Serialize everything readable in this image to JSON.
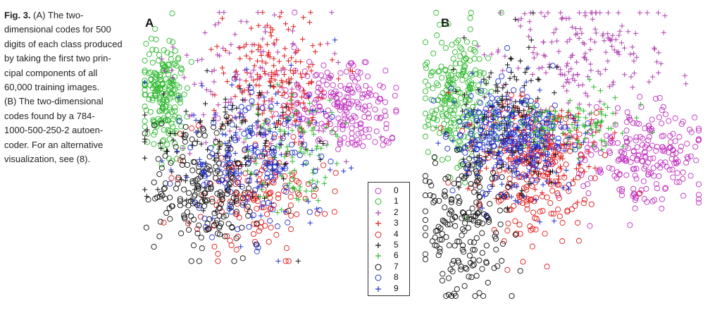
{
  "caption": {
    "fig_label": "Fig. 3.",
    "line1_rest": " (A) The two-",
    "line2": "dimensional codes for 500",
    "line3": "digits of each class produced",
    "line4": "by taking the first two prin-",
    "line5": "cipal components of all",
    "line6": "60,000 training images.",
    "line7": "(B) The two-dimensional",
    "line8": "codes found by a 784-",
    "line9": "1000-500-250-2 autoen-",
    "line10": "coder. For an alternative",
    "line11": "visualization, see (8)."
  },
  "chart_data": [
    {
      "type": "scatter",
      "panel": "A",
      "title": "",
      "xlabel": "",
      "ylabel": "",
      "axes_visible": false,
      "grid": false,
      "legend_position": "shared, between panels bottom",
      "series": [
        {
          "name": "0",
          "marker": "circle",
          "color": "#c030c0",
          "cluster": {
            "cx": 0.78,
            "cy": 0.38,
            "sx": 0.12,
            "sy": 0.1,
            "n": 220
          }
        },
        {
          "name": "1",
          "marker": "circle",
          "color": "#2db82d",
          "cluster": {
            "cx": 0.08,
            "cy": 0.33,
            "sx": 0.04,
            "sy": 0.11,
            "n": 200
          }
        },
        {
          "name": "2",
          "marker": "plus",
          "color": "#b040b0",
          "cluster": {
            "cx": 0.45,
            "cy": 0.3,
            "sx": 0.16,
            "sy": 0.15,
            "n": 140
          }
        },
        {
          "name": "3",
          "marker": "plus",
          "color": "#e01818",
          "cluster": {
            "cx": 0.52,
            "cy": 0.26,
            "sx": 0.1,
            "sy": 0.12,
            "n": 170
          }
        },
        {
          "name": "4",
          "marker": "circle",
          "color": "#e01818",
          "cluster": {
            "cx": 0.44,
            "cy": 0.72,
            "sx": 0.14,
            "sy": 0.12,
            "n": 150
          }
        },
        {
          "name": "5",
          "marker": "plus",
          "color": "#111111",
          "cluster": {
            "cx": 0.36,
            "cy": 0.55,
            "sx": 0.15,
            "sy": 0.14,
            "n": 140
          }
        },
        {
          "name": "6",
          "marker": "plus",
          "color": "#2db82d",
          "cluster": {
            "cx": 0.6,
            "cy": 0.55,
            "sx": 0.12,
            "sy": 0.12,
            "n": 100
          }
        },
        {
          "name": "7",
          "marker": "circle",
          "color": "#111111",
          "cluster": {
            "cx": 0.25,
            "cy": 0.74,
            "sx": 0.1,
            "sy": 0.12,
            "n": 190
          }
        },
        {
          "name": "8",
          "marker": "circle",
          "color": "#2030d0",
          "cluster": {
            "cx": 0.42,
            "cy": 0.6,
            "sx": 0.14,
            "sy": 0.14,
            "n": 120
          }
        },
        {
          "name": "9",
          "marker": "plus",
          "color": "#2030d0",
          "cluster": {
            "cx": 0.44,
            "cy": 0.58,
            "sx": 0.15,
            "sy": 0.16,
            "n": 100
          }
        }
      ]
    },
    {
      "type": "scatter",
      "panel": "B",
      "title": "",
      "xlabel": "",
      "ylabel": "",
      "axes_visible": false,
      "grid": false,
      "legend_position": "shared, between panels bottom",
      "series": [
        {
          "name": "0",
          "marker": "circle",
          "color": "#c030c0",
          "cluster": {
            "cx": 0.78,
            "cy": 0.5,
            "sx": 0.14,
            "sy": 0.08,
            "n": 240
          }
        },
        {
          "name": "1",
          "marker": "circle",
          "color": "#2db82d",
          "cluster": {
            "cx": 0.12,
            "cy": 0.3,
            "sx": 0.06,
            "sy": 0.12,
            "n": 230
          }
        },
        {
          "name": "2",
          "marker": "plus",
          "color": "#b040b0",
          "cluster": {
            "cx": 0.6,
            "cy": 0.15,
            "sx": 0.15,
            "sy": 0.1,
            "n": 170
          }
        },
        {
          "name": "3",
          "marker": "plus",
          "color": "#e01818",
          "cluster": {
            "cx": 0.4,
            "cy": 0.46,
            "sx": 0.12,
            "sy": 0.08,
            "n": 180
          }
        },
        {
          "name": "4",
          "marker": "circle",
          "color": "#e01818",
          "cluster": {
            "cx": 0.4,
            "cy": 0.58,
            "sx": 0.1,
            "sy": 0.12,
            "n": 200
          }
        },
        {
          "name": "5",
          "marker": "plus",
          "color": "#111111",
          "cluster": {
            "cx": 0.3,
            "cy": 0.4,
            "sx": 0.08,
            "sy": 0.12,
            "n": 160
          }
        },
        {
          "name": "6",
          "marker": "plus",
          "color": "#2db82d",
          "cluster": {
            "cx": 0.46,
            "cy": 0.4,
            "sx": 0.14,
            "sy": 0.05,
            "n": 140
          }
        },
        {
          "name": "7",
          "marker": "circle",
          "color": "#111111",
          "cluster": {
            "cx": 0.15,
            "cy": 0.74,
            "sx": 0.08,
            "sy": 0.14,
            "n": 200
          }
        },
        {
          "name": "8",
          "marker": "circle",
          "color": "#2030d0",
          "cluster": {
            "cx": 0.3,
            "cy": 0.44,
            "sx": 0.1,
            "sy": 0.09,
            "n": 190
          }
        },
        {
          "name": "9",
          "marker": "plus",
          "color": "#2030d0",
          "cluster": {
            "cx": 0.36,
            "cy": 0.48,
            "sx": 0.12,
            "sy": 0.1,
            "n": 150
          }
        }
      ]
    }
  ],
  "panel_labels": {
    "a": "A",
    "b": "B"
  },
  "legend": {
    "items": [
      {
        "label": "0",
        "marker": "circle",
        "color": "#c030c0"
      },
      {
        "label": "1",
        "marker": "circle",
        "color": "#2db82d"
      },
      {
        "label": "2",
        "marker": "plus",
        "color": "#b040b0"
      },
      {
        "label": "3",
        "marker": "plus",
        "color": "#e01818"
      },
      {
        "label": "4",
        "marker": "circle",
        "color": "#e01818"
      },
      {
        "label": "5",
        "marker": "plus",
        "color": "#111111"
      },
      {
        "label": "6",
        "marker": "plus",
        "color": "#2db82d"
      },
      {
        "label": "7",
        "marker": "circle",
        "color": "#111111"
      },
      {
        "label": "8",
        "marker": "circle",
        "color": "#2030d0"
      },
      {
        "label": "9",
        "marker": "plus",
        "color": "#2030d0"
      }
    ]
  }
}
